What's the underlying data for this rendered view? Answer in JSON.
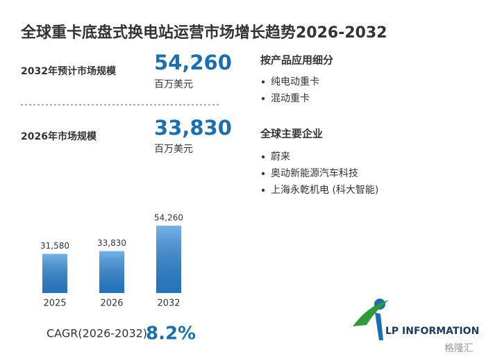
{
  "title": "全球重卡底盘式换电站运营市场增长趋势2026-2032",
  "stats": [
    {
      "label": "2032年预计市场规模",
      "value": "54,260",
      "unit": "百万美元"
    },
    {
      "label": "2026年市场规模",
      "value": "33,830",
      "unit": "百万美元"
    }
  ],
  "segments": {
    "title": "按产品应用细分",
    "items": [
      "纯电动重卡",
      "混动重卡"
    ]
  },
  "companies": {
    "title": "全球主要企业",
    "items": [
      "蔚来",
      "奥动新能源汽车科技",
      "上海永乾机电 (科大智能)"
    ]
  },
  "chart_data": {
    "type": "bar",
    "categories": [
      "2025",
      "2026",
      "2032"
    ],
    "values": [
      31580,
      33830,
      54260
    ],
    "value_labels": [
      "31,580",
      "33,830",
      "54,260"
    ],
    "color": "#2a88dc"
  },
  "cagr": {
    "label": "CAGR(2026-2032)",
    "value": "8.2%"
  },
  "logo": "LP INFORMATION",
  "watermark": "格隆汇"
}
